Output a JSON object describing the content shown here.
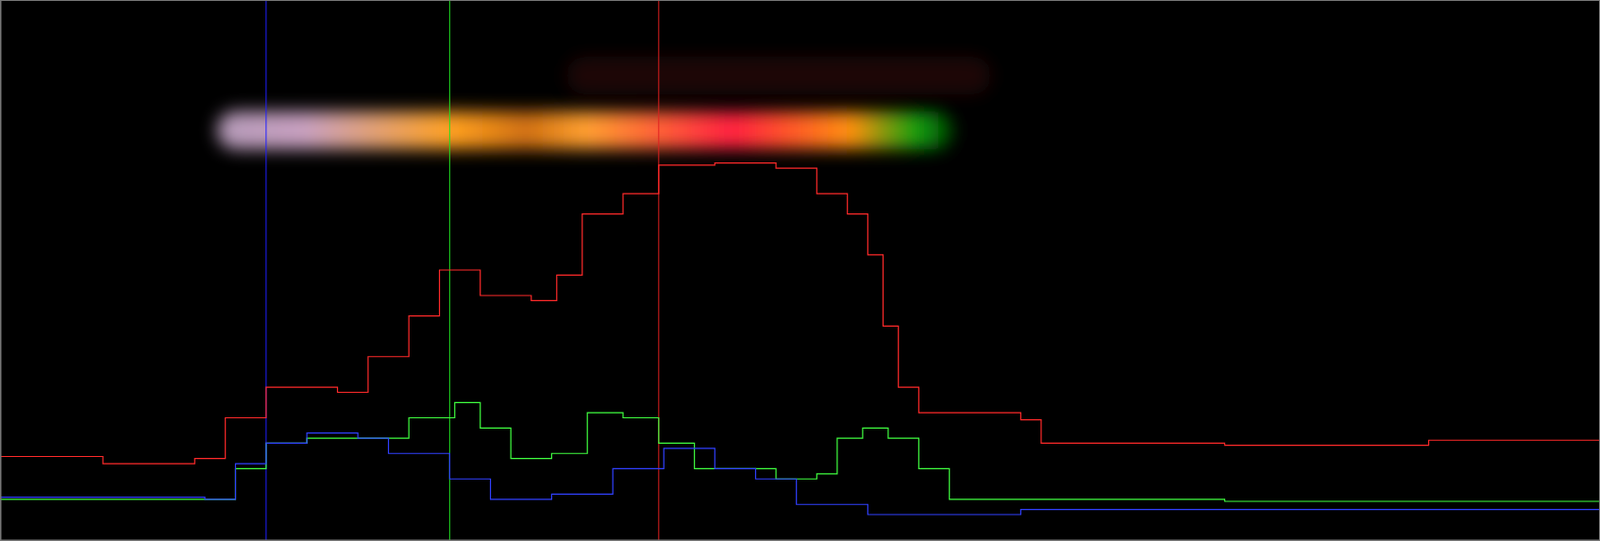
{
  "chart_data": {
    "type": "line",
    "line_style": "step",
    "tick_labels": false,
    "grid": false,
    "xlim": [
      0,
      1568
    ],
    "ylim": [
      0,
      530
    ],
    "xticks": [],
    "yticks": [],
    "vertical_lines": [
      {
        "x": 260,
        "color": "#2020ff"
      },
      {
        "x": 440,
        "color": "#20e020"
      },
      {
        "x": 645,
        "color": "#e02020"
      }
    ],
    "series": [
      {
        "color": "#ff2a2a",
        "x": [
          0,
          100,
          190,
          220,
          260,
          300,
          330,
          360,
          400,
          430,
          460,
          470,
          520,
          545,
          570,
          610,
          645,
          700,
          760,
          800,
          830,
          850,
          865,
          880,
          900,
          1000,
          1020,
          1200,
          1400,
          1568
        ],
        "values": [
          82,
          75,
          80,
          120,
          150,
          150,
          145,
          180,
          220,
          265,
          265,
          240,
          235,
          260,
          320,
          340,
          368,
          370,
          365,
          340,
          320,
          280,
          210,
          150,
          125,
          118,
          95,
          93,
          98,
          120
        ]
      },
      {
        "color": "#40ff40",
        "x": [
          0,
          200,
          230,
          260,
          300,
          350,
          400,
          445,
          470,
          500,
          540,
          575,
          610,
          645,
          680,
          760,
          800,
          820,
          845,
          870,
          900,
          930,
          1200,
          1568
        ],
        "values": [
          40,
          40,
          70,
          95,
          100,
          100,
          120,
          135,
          110,
          80,
          85,
          125,
          120,
          95,
          70,
          60,
          65,
          100,
          110,
          100,
          70,
          40,
          38,
          38
        ]
      },
      {
        "color": "#3040ff",
        "x": [
          0,
          200,
          230,
          260,
          300,
          350,
          380,
          440,
          480,
          540,
          600,
          650,
          700,
          740,
          780,
          850,
          1000,
          1568
        ],
        "values": [
          42,
          40,
          75,
          95,
          105,
          100,
          85,
          60,
          40,
          45,
          70,
          90,
          70,
          60,
          35,
          25,
          30,
          35
        ]
      }
    ]
  }
}
